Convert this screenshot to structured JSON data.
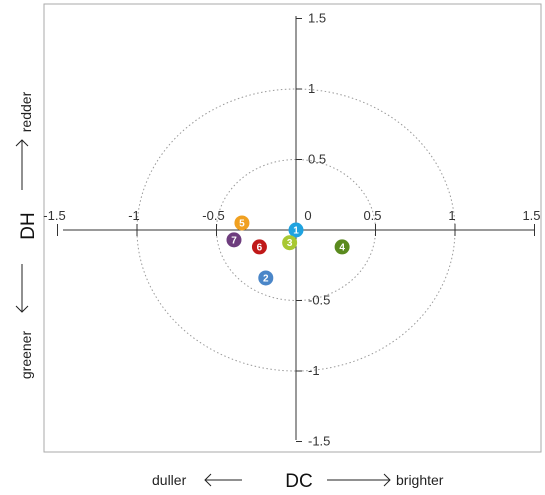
{
  "chart_data": {
    "type": "scatter",
    "xlabel": "DC",
    "ylabel": "DH",
    "xlim": [
      -1.5,
      1.5
    ],
    "ylim": [
      -1.5,
      1.5
    ],
    "x_ticks": [
      "-1.5",
      "-1",
      "-0.5",
      "0",
      "0.5",
      "1",
      "1.5"
    ],
    "y_ticks": [
      "1.5",
      "1",
      "0.5",
      "-0.5",
      "-1",
      "-1.5"
    ],
    "x_negative_label": "duller",
    "x_positive_label": "brighter",
    "y_positive_label": "redder",
    "y_negative_label": "greener",
    "reference_circles_radius": [
      0.5,
      1.0
    ],
    "points": [
      {
        "label": "1",
        "x": 0.0,
        "y": 0.0,
        "color": "#1fa3e0"
      },
      {
        "label": "2",
        "x": -0.19,
        "y": -0.34,
        "color": "#4a86c8"
      },
      {
        "label": "3",
        "x": -0.04,
        "y": -0.09,
        "color": "#a8c832"
      },
      {
        "label": "4",
        "x": 0.29,
        "y": -0.12,
        "color": "#5a8a1e"
      },
      {
        "label": "5",
        "x": -0.34,
        "y": 0.05,
        "color": "#f0a020"
      },
      {
        "label": "6",
        "x": -0.23,
        "y": -0.12,
        "color": "#c01818"
      },
      {
        "label": "7",
        "x": -0.39,
        "y": -0.07,
        "color": "#6e3d7e"
      }
    ]
  }
}
